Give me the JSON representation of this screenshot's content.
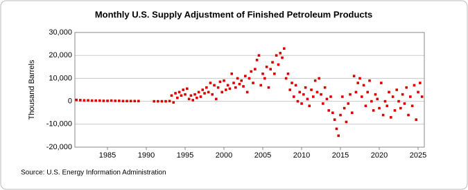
{
  "chart_data": {
    "type": "scatter",
    "title": "Monthly U.S. Supply Adjustment of Finished Petroleum Products",
    "y_label": "Thousand Barrels",
    "source": "Source: U.S. Energy Information Administration",
    "color": "#dd0000",
    "grid": true,
    "xlim": [
      1980.8,
      2025.8
    ],
    "ylim": [
      -20000,
      30000
    ],
    "xticks": [
      1985,
      1990,
      1995,
      2000,
      2005,
      2010,
      2015,
      2020,
      2025
    ],
    "yticks": [
      {
        "value": -20000,
        "label": "-20,000"
      },
      {
        "value": -10000,
        "label": "-10,000"
      },
      0,
      {
        "value": 10000,
        "label": "10,000"
      },
      {
        "value": 20000,
        "label": "20,000"
      },
      {
        "value": 30000,
        "label": "30,000"
      }
    ],
    "x": [
      1981,
      1981.5,
      1982,
      1982.5,
      1983,
      1983.5,
      1984,
      1984.5,
      1985,
      1985.5,
      1986,
      1986.5,
      1987,
      1987.5,
      1988,
      1988.5,
      1989,
      1991,
      1991.5,
      1992,
      1992.5,
      1993,
      1993.25,
      1993.5,
      1993.75,
      1994,
      1994.25,
      1994.5,
      1994.75,
      1995,
      1995.25,
      1995.5,
      1995.75,
      1996,
      1996.25,
      1996.5,
      1996.75,
      1997,
      1997.25,
      1997.5,
      1997.75,
      1998,
      1998.25,
      1998.5,
      1998.75,
      1999,
      1999.25,
      1999.5,
      1999.75,
      2000,
      2000.25,
      2000.5,
      2000.75,
      2001,
      2001.25,
      2001.5,
      2001.75,
      2002,
      2002.25,
      2002.5,
      2002.75,
      2003,
      2003.25,
      2003.5,
      2003.75,
      2004,
      2004.25,
      2004.5,
      2004.75,
      2005,
      2005.25,
      2005.5,
      2005.75,
      2006,
      2006.25,
      2006.5,
      2006.75,
      2007,
      2007.25,
      2007.5,
      2007.75,
      2008,
      2008.25,
      2008.5,
      2008.75,
      2009,
      2009.25,
      2009.5,
      2009.75,
      2010,
      2010.25,
      2010.5,
      2010.75,
      2011,
      2011.25,
      2011.5,
      2011.75,
      2012,
      2012.25,
      2012.5,
      2012.75,
      2013,
      2013.25,
      2013.5,
      2013.75,
      2014,
      2014.25,
      2014.5,
      2014.75,
      2015,
      2015.25,
      2015.5,
      2015.75,
      2016,
      2016.25,
      2016.5,
      2016.75,
      2017,
      2017.25,
      2017.5,
      2017.75,
      2018,
      2018.25,
      2018.5,
      2018.75,
      2019,
      2019.25,
      2019.5,
      2019.75,
      2020,
      2020.25,
      2020.5,
      2020.75,
      2021,
      2021.25,
      2021.5,
      2021.75,
      2022,
      2022.25,
      2022.5,
      2022.75,
      2023,
      2023.25,
      2023.5,
      2023.75,
      2024,
      2024.25,
      2024.5,
      2024.75,
      2025,
      2025.25,
      2025.5
    ],
    "values": [
      600,
      500,
      400,
      400,
      300,
      300,
      300,
      200,
      200,
      300,
      200,
      200,
      100,
      100,
      100,
      100,
      100,
      0,
      0,
      0,
      0,
      100,
      2500,
      -500,
      3500,
      1500,
      4000,
      2500,
      5000,
      3000,
      5500,
      1000,
      2500,
      500,
      3000,
      1500,
      4000,
      2000,
      5000,
      3500,
      6000,
      4000,
      8000,
      3000,
      7000,
      1000,
      6000,
      8500,
      4000,
      9000,
      5000,
      7000,
      5500,
      12000,
      8000,
      6000,
      10000,
      7500,
      9000,
      6500,
      11000,
      4000,
      10000,
      13000,
      8000,
      14000,
      18000,
      20000,
      7000,
      12000,
      10000,
      15000,
      6000,
      14000,
      17000,
      12000,
      20000,
      16000,
      21000,
      19000,
      23000,
      10000,
      12000,
      5000,
      8000,
      2000,
      7000,
      0,
      4000,
      -1000,
      3000,
      6000,
      1000,
      -2000,
      5000,
      2000,
      9000,
      4000,
      10000,
      3000,
      -1000,
      6000,
      1000,
      -4000,
      2000,
      -5000,
      -8000,
      -12000,
      -15000,
      -6000,
      2000,
      -3000,
      -9000,
      -1000,
      3000,
      -5000,
      11000,
      4000,
      8000,
      10000,
      2000,
      7000,
      -2000,
      4000,
      9000,
      0,
      -4000,
      3000,
      1000,
      -3000,
      8000,
      -6000,
      0,
      -2000,
      4000,
      -7000,
      2000,
      -4000,
      5000,
      0,
      -3000,
      3000,
      -1000,
      6000,
      -6000,
      2000,
      -2000,
      7000,
      -8000,
      4000,
      8000,
      2000
    ]
  }
}
